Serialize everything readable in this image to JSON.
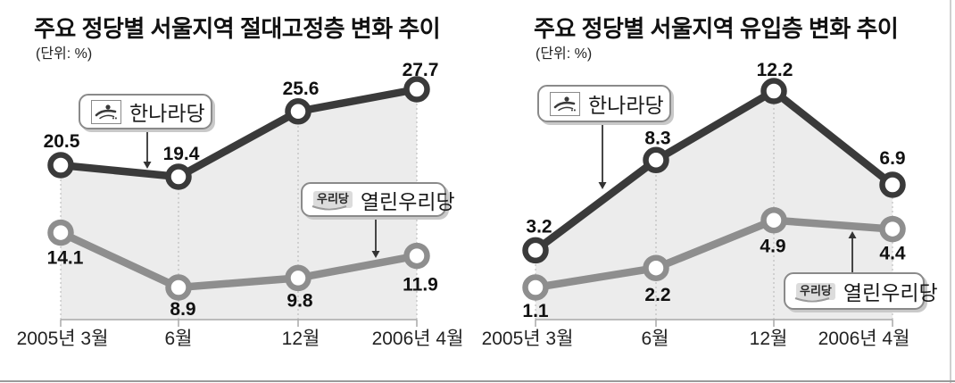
{
  "chart_data": [
    {
      "type": "line",
      "title": "주요 정당별 서울지역 절대고정층 변화 추이",
      "unit": "(단위: %)",
      "categories": [
        "2005년 3월",
        "6월",
        "12월",
        "2006년 4월"
      ],
      "series": [
        {
          "name": "한나라당",
          "values": [
            20.5,
            19.4,
            25.6,
            27.7
          ],
          "color": "#3a3a3a"
        },
        {
          "name": "열린우리당",
          "values": [
            14.1,
            8.9,
            9.8,
            11.9
          ],
          "color": "#8e8e8e"
        }
      ],
      "area_fill": "#ececec",
      "grid": "dashed-vertical-guides",
      "legend_position": "inside-plot",
      "ylim": [
        5,
        29
      ]
    },
    {
      "type": "line",
      "title": "주요 정당별 서울지역 유입층 변화 추이",
      "unit": "(단위: %)",
      "categories": [
        "2005년 3월",
        "6월",
        "12월",
        "2006년 4월"
      ],
      "series": [
        {
          "name": "한나라당",
          "values": [
            3.2,
            8.3,
            12.2,
            6.9
          ],
          "color": "#3a3a3a"
        },
        {
          "name": "열린우리당",
          "values": [
            1.1,
            2.2,
            4.9,
            4.4
          ],
          "color": "#8e8e8e"
        }
      ],
      "area_fill": "#ececec",
      "grid": "dashed-vertical-guides",
      "legend_position": "inside-plot",
      "ylim": [
        0,
        13
      ]
    }
  ],
  "logos": {
    "uri_text": "우리당",
    "hannara_icon": "stylized-figure-sketch"
  },
  "colors": {
    "dark_series": "#3a3a3a",
    "gray_series": "#8e8e8e",
    "area_fill": "#ececec",
    "guide_line": "#b5b5b5",
    "axis_line": "#a8a8a8"
  }
}
